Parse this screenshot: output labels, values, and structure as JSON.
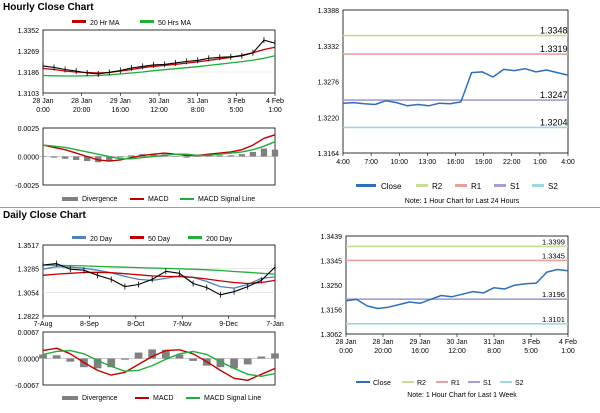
{
  "sections": {
    "hourly_title": "Hourly Close Chart",
    "daily_title": "Daily Close Chart"
  },
  "colors": {
    "price": "#000000",
    "ma_red": "#c00000",
    "ma_green": "#1fae3a",
    "ma_blue": "#4f81bd",
    "macd": "#c00000",
    "signal": "#1fae3a",
    "divergence": "#808080",
    "close_line": "#2e6fb8",
    "r2": "#c5dc9b",
    "r1": "#e9a19d",
    "s1": "#a59fcf",
    "s2": "#9fd6e2"
  },
  "legend_labels": {
    "ma20h": "20 Hr MA",
    "ma50h": "50 Hrs MA",
    "ma20d": "20 Day",
    "ma50d": "50 Day",
    "ma200d": "200 Day",
    "divergence": "Divergence",
    "macd": "MACD",
    "signal": "MACD Signal Line",
    "close": "Close",
    "r2": "R2",
    "r1": "R1",
    "s1": "S1",
    "s2": "S2"
  },
  "notes": {
    "hourly": "Note: 1 Hour Chart for Last 24 Hours",
    "daily": "Note: 1 Hour Chart for Last 1 Week"
  },
  "chart_data": [
    {
      "type": "line",
      "yticks": [
        "1.3352",
        "1.3269",
        "1.3186",
        "1.3103"
      ],
      "yrange": [
        1.3103,
        1.3352
      ],
      "xticks": [
        [
          "28 Jan",
          "0:00"
        ],
        [
          "28 Jan",
          "20:00"
        ],
        [
          "29 Jan",
          "16:00"
        ],
        [
          "30 Jan",
          "12:00"
        ],
        [
          "31 Jan",
          "8:00"
        ],
        [
          "3 Feb",
          "5:00"
        ],
        [
          "4 Feb",
          "1:00"
        ]
      ],
      "series": [
        {
          "name": "20 Hr MA",
          "values": [
            1.32,
            1.3196,
            1.319,
            1.3186,
            1.3184,
            1.3182,
            1.3184,
            1.319,
            1.3196,
            1.3203,
            1.3208,
            1.3212,
            1.3216,
            1.3221,
            1.3226,
            1.3232,
            1.3238,
            1.3244,
            1.3252,
            1.3262,
            1.3275,
            1.3284
          ]
        },
        {
          "name": "50 Hrs MA",
          "values": [
            1.3172,
            1.3171,
            1.317,
            1.317,
            1.3171,
            1.3172,
            1.3175,
            1.3178,
            1.3182,
            1.3186,
            1.3191,
            1.3195,
            1.3199,
            1.3203,
            1.3207,
            1.3212,
            1.3217,
            1.3222,
            1.3227,
            1.3233,
            1.324,
            1.325
          ]
        },
        {
          "name": "Close",
          "values": [
            1.321,
            1.3204,
            1.3196,
            1.319,
            1.3182,
            1.3178,
            1.3185,
            1.3192,
            1.3202,
            1.3208,
            1.3214,
            1.3216,
            1.3222,
            1.3228,
            1.3232,
            1.324,
            1.3244,
            1.3246,
            1.325,
            1.3262,
            1.3312,
            1.33
          ]
        }
      ]
    },
    {
      "type": "bar",
      "yticks": [
        "0.0025",
        "0.0000",
        "-0.0025"
      ],
      "yrange": [
        -0.0025,
        0.0025
      ],
      "series": [
        {
          "name": "MACD",
          "values": [
            0.001,
            0.0008,
            0.0006,
            0.0003,
            0.0,
            -0.0003,
            -0.0004,
            -0.0003,
            -0.0001,
            0.0001,
            0.0002,
            0.0003,
            0.0002,
            0.0001,
            0.0001,
            0.0002,
            0.0003,
            0.0004,
            0.0006,
            0.001,
            0.0016,
            0.0019
          ]
        },
        {
          "name": "MACD Signal Line",
          "values": [
            0.001,
            0.0009,
            0.0008,
            0.0006,
            0.0004,
            0.0002,
            0.0,
            -0.0002,
            -0.0002,
            -0.0001,
            0.0,
            0.0001,
            0.0002,
            0.0002,
            0.0001,
            0.0001,
            0.0002,
            0.0003,
            0.0004,
            0.0006,
            0.0009,
            0.0013
          ]
        },
        {
          "name": "Divergence",
          "values": [
            0.0,
            -0.0001,
            -0.0002,
            -0.0003,
            -0.0004,
            -0.0005,
            -0.0004,
            -0.0001,
            0.0001,
            0.0002,
            0.0002,
            0.0002,
            0.0,
            -0.0001,
            0.0,
            0.0001,
            0.0001,
            0.0001,
            0.0002,
            0.0004,
            0.0007,
            0.0006
          ]
        }
      ]
    },
    {
      "type": "line",
      "yticks": [
        "1.3388",
        "1.3332",
        "1.3276",
        "1.3220",
        "1.3164"
      ],
      "yrange": [
        1.3164,
        1.3388
      ],
      "xticks": [
        "4:00",
        "7:00",
        "10:00",
        "13:00",
        "16:00",
        "19:00",
        "22:00",
        "1:00",
        "4:00"
      ],
      "value_labels": [
        "1.3348",
        "1.3319",
        "1.3247",
        "1.3204"
      ],
      "levels": {
        "R2": 1.3348,
        "R1": 1.3319,
        "S1": 1.3247,
        "S2": 1.3204
      },
      "series": [
        {
          "name": "Close",
          "values": [
            1.3242,
            1.3243,
            1.3241,
            1.324,
            1.3246,
            1.3243,
            1.3238,
            1.324,
            1.3238,
            1.3242,
            1.3241,
            1.3244,
            1.329,
            1.3291,
            1.3283,
            1.3295,
            1.3293,
            1.3296,
            1.3291,
            1.3294,
            1.329,
            1.3286
          ]
        }
      ]
    },
    {
      "type": "line",
      "yticks": [
        "1.3517",
        "1.3285",
        "1.3054",
        "1.2822"
      ],
      "yrange": [
        1.2822,
        1.3517
      ],
      "xticks": [
        "7-Aug",
        "8-Sep",
        "8-Oct",
        "7-Nov",
        "9-Dec",
        "7-Jan"
      ],
      "series": [
        {
          "name": "20 Day",
          "values": [
            1.328,
            1.3305,
            1.33,
            1.329,
            1.327,
            1.3245,
            1.321,
            1.318,
            1.317,
            1.319,
            1.3215,
            1.32,
            1.316,
            1.311,
            1.3095,
            1.313,
            1.319,
            1.3205
          ]
        },
        {
          "name": "50 Day",
          "values": [
            1.322,
            1.3232,
            1.324,
            1.3248,
            1.325,
            1.3246,
            1.3236,
            1.3225,
            1.3215,
            1.321,
            1.3208,
            1.32,
            1.3184,
            1.3166,
            1.315,
            1.314,
            1.315,
            1.317
          ]
        },
        {
          "name": "200 Day",
          "values": [
            1.332,
            1.3318,
            1.3315,
            1.3312,
            1.3308,
            1.3304,
            1.33,
            1.3296,
            1.3292,
            1.3288,
            1.3284,
            1.328,
            1.3274,
            1.3267,
            1.3258,
            1.325,
            1.324,
            1.3232
          ]
        },
        {
          "name": "Close",
          "values": [
            1.332,
            1.3335,
            1.328,
            1.327,
            1.322,
            1.318,
            1.311,
            1.313,
            1.318,
            1.326,
            1.324,
            1.314,
            1.31,
            1.303,
            1.306,
            1.311,
            1.317,
            1.33
          ]
        }
      ]
    },
    {
      "type": "bar",
      "yticks": [
        "0.0067",
        "0.0000",
        "-0.0067"
      ],
      "yrange": [
        -0.0067,
        0.0067
      ],
      "series": [
        {
          "name": "MACD",
          "values": [
            0.002,
            0.0026,
            0.0012,
            -0.001,
            -0.003,
            -0.0042,
            -0.0035,
            -0.0015,
            0.0005,
            0.002,
            0.0022,
            0.0012,
            -0.0008,
            -0.003,
            -0.005,
            -0.0055,
            -0.004,
            -0.0025
          ]
        },
        {
          "name": "MACD Signal Line",
          "values": [
            0.001,
            0.0018,
            0.002,
            0.0012,
            -0.0005,
            -0.002,
            -0.0032,
            -0.003,
            -0.0018,
            -0.0002,
            0.0012,
            0.0018,
            0.001,
            -0.0008,
            -0.0025,
            -0.004,
            -0.0045,
            -0.0038
          ]
        },
        {
          "name": "Divergence",
          "values": [
            0.001,
            0.0008,
            -0.0008,
            -0.0022,
            -0.0025,
            -0.0022,
            -0.0003,
            0.0015,
            0.0023,
            0.0022,
            0.001,
            -0.0006,
            -0.0018,
            -0.0022,
            -0.0025,
            -0.0015,
            0.0005,
            0.0013
          ]
        }
      ]
    },
    {
      "type": "line",
      "yticks": [
        "1.3439",
        "1.3345",
        "1.3250",
        "1.3156",
        "1.3062"
      ],
      "yrange": [
        1.3062,
        1.3439
      ],
      "xticks": [
        [
          "28 Jan",
          "0:00"
        ],
        [
          "28 Jan",
          "20:00"
        ],
        [
          "29 Jan",
          "16:00"
        ],
        [
          "30 Jan",
          "12:00"
        ],
        [
          "31 Jan",
          "8:00"
        ],
        [
          "3 Feb",
          "5:00"
        ],
        [
          "4 Feb",
          "1:00"
        ]
      ],
      "value_labels": [
        "1.3399",
        "1.3345",
        "1.3196",
        "1.3101"
      ],
      "levels": {
        "R2": 1.3399,
        "R1": 1.3345,
        "S1": 1.3196,
        "S2": 1.3101
      },
      "series": [
        {
          "name": "Close",
          "values": [
            1.319,
            1.3195,
            1.317,
            1.316,
            1.3165,
            1.3175,
            1.3185,
            1.318,
            1.3195,
            1.321,
            1.3205,
            1.3215,
            1.3225,
            1.322,
            1.324,
            1.3235,
            1.325,
            1.3255,
            1.3258,
            1.33,
            1.331,
            1.3305
          ]
        }
      ]
    }
  ]
}
